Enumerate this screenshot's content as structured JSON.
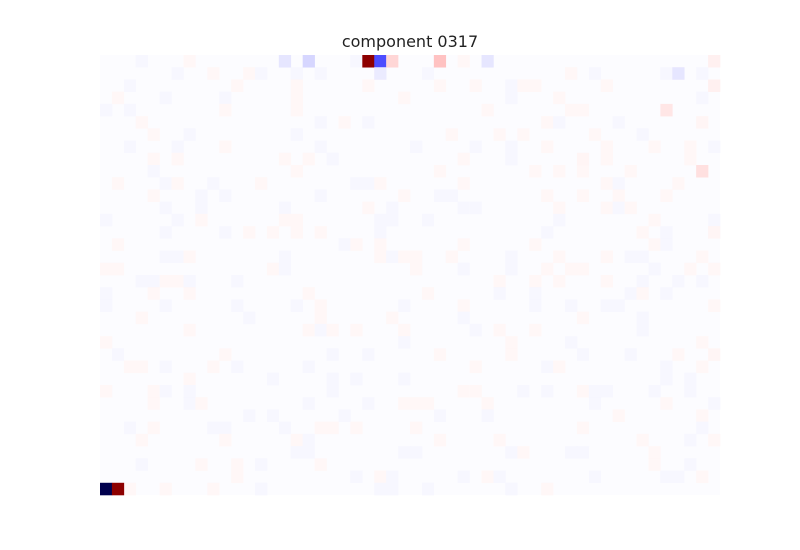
{
  "chart_data": {
    "type": "heatmap",
    "title": "component 0317",
    "xlabel": "",
    "ylabel": "",
    "colormap": "seismic",
    "color_range": [
      -1,
      1
    ],
    "colors": {
      "negative": "#00004d",
      "mid_negative": "#0000ff",
      "zero": "#ffffff",
      "mid_positive": "#ff0000",
      "positive": "#800000"
    },
    "rows": 36,
    "cols": 52,
    "cells": [
      {
        "row": 0,
        "col": 22,
        "value": 0.95
      },
      {
        "row": 0,
        "col": 23,
        "value": -0.35
      },
      {
        "row": 0,
        "col": 24,
        "value": 0.08
      },
      {
        "row": 0,
        "col": 28,
        "value": 0.12
      },
      {
        "row": 0,
        "col": 15,
        "value": -0.05
      },
      {
        "row": 0,
        "col": 17,
        "value": -0.08
      },
      {
        "row": 0,
        "col": 32,
        "value": -0.05
      },
      {
        "row": 0,
        "col": 51,
        "value": 0.03
      },
      {
        "row": 1,
        "col": 23,
        "value": -0.04
      },
      {
        "row": 1,
        "col": 48,
        "value": -0.05
      },
      {
        "row": 2,
        "col": 51,
        "value": 0.03
      },
      {
        "row": 4,
        "col": 47,
        "value": 0.05
      },
      {
        "row": 9,
        "col": 50,
        "value": 0.06
      },
      {
        "row": 5,
        "col": 50,
        "value": 0.02
      },
      {
        "row": 8,
        "col": 40,
        "value": 0.02
      },
      {
        "row": 14,
        "col": 51,
        "value": 0.02
      },
      {
        "row": 24,
        "col": 51,
        "value": 0.02
      },
      {
        "row": 35,
        "col": 0,
        "value": -1.0
      },
      {
        "row": 35,
        "col": 1,
        "value": 0.95
      }
    ]
  }
}
